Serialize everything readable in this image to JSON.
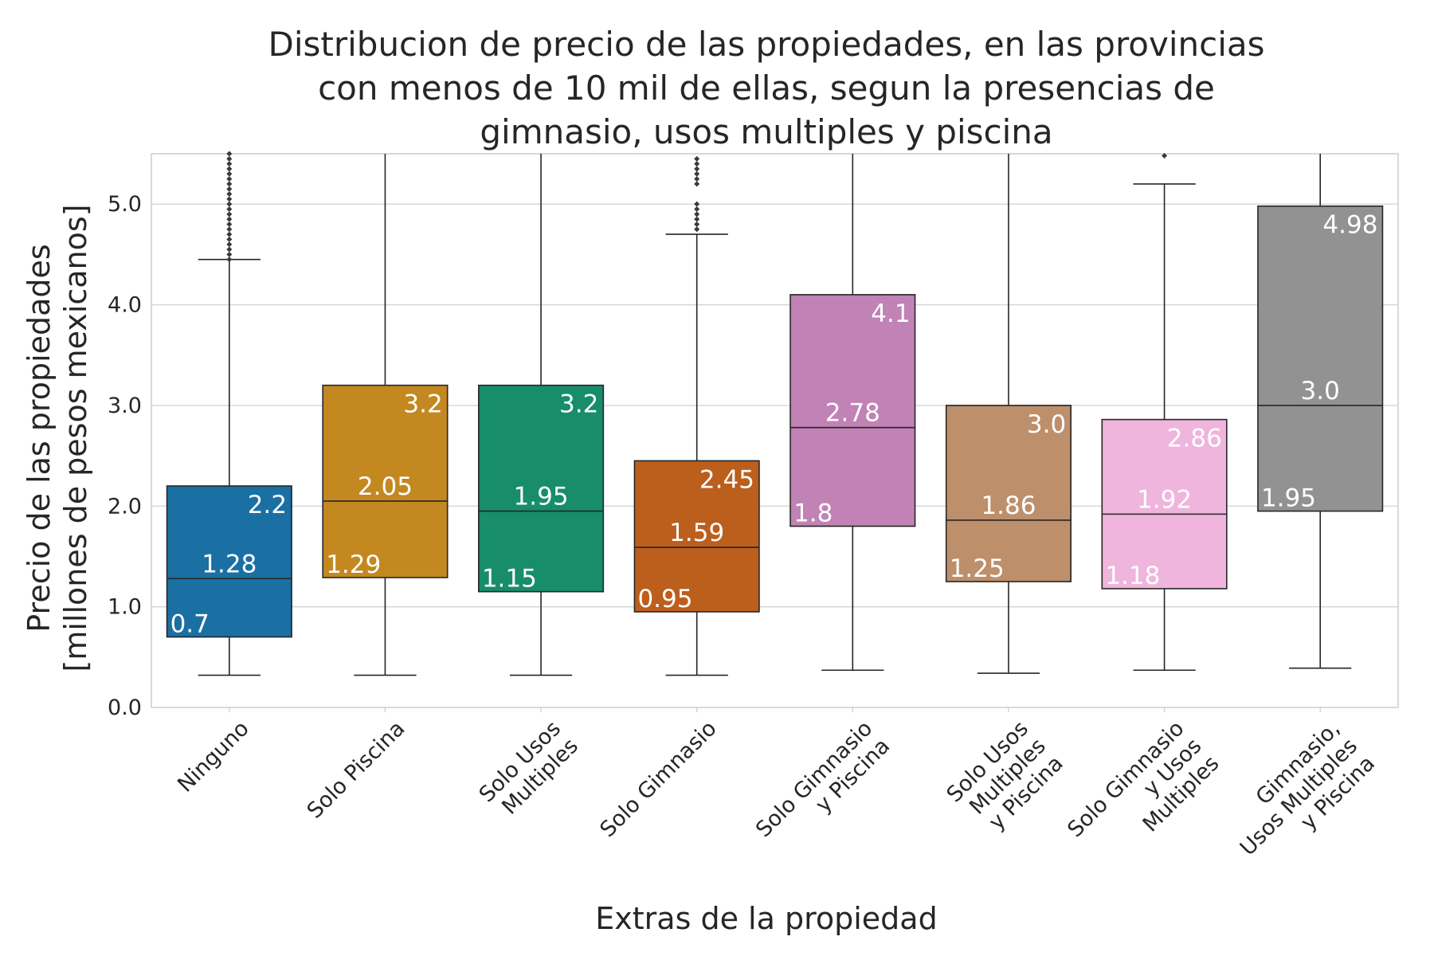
{
  "chart_data": {
    "type": "box",
    "title_lines": [
      "Distribucion de precio de las propiedades, en las provincias",
      "con menos de 10 mil de ellas, segun la presencias de",
      "gimnasio, usos multiples y piscina"
    ],
    "xlabel": "Extras de la propiedad",
    "ylabel_lines": [
      "Precio de las propiedades",
      "[millones de pesos mexicanos]"
    ],
    "ylim": [
      0,
      5.5
    ],
    "yticks": [
      "0.0",
      "1.0",
      "2.0",
      "3.0",
      "4.0",
      "5.0"
    ],
    "grid": true,
    "categories": [
      {
        "lines": [
          "Ninguno"
        ],
        "q1": 0.7,
        "median": 1.28,
        "q3": 2.2,
        "whisker_low": 0.32,
        "whisker_high": 4.45,
        "color": "#1a6fa3",
        "q1_label": "0.7",
        "median_label": "1.28",
        "q3_label": "2.2",
        "outliers": [
          4.45,
          4.5,
          4.55,
          4.6,
          4.65,
          4.7,
          4.75,
          4.8,
          4.85,
          4.9,
          4.95,
          5.0,
          5.05,
          5.1,
          5.15,
          5.2,
          5.25,
          5.3,
          5.35,
          5.4,
          5.45,
          5.5
        ]
      },
      {
        "lines": [
          "Solo Piscina"
        ],
        "q1": 1.29,
        "median": 2.05,
        "q3": 3.2,
        "whisker_low": 0.32,
        "whisker_high": 5.5,
        "color": "#c38820",
        "q1_label": "1.29",
        "median_label": "2.05",
        "q3_label": "3.2",
        "outliers": []
      },
      {
        "lines": [
          "Solo Usos",
          "Multiples"
        ],
        "q1": 1.15,
        "median": 1.95,
        "q3": 3.2,
        "whisker_low": 0.32,
        "whisker_high": 5.5,
        "color": "#178d6a",
        "q1_label": "1.15",
        "median_label": "1.95",
        "q3_label": "3.2",
        "outliers": []
      },
      {
        "lines": [
          "Solo Gimnasio"
        ],
        "q1": 0.95,
        "median": 1.59,
        "q3": 2.45,
        "whisker_low": 0.32,
        "whisker_high": 4.7,
        "color": "#bc5e1c",
        "q1_label": "0.95",
        "median_label": "1.59",
        "q3_label": "2.45",
        "outliers": [
          4.75,
          4.8,
          4.85,
          4.9,
          4.95,
          5.0,
          5.2,
          5.25,
          5.3,
          5.35,
          5.4,
          5.45
        ]
      },
      {
        "lines": [
          "Solo Gimnasio",
          "y Piscina"
        ],
        "q1": 1.8,
        "median": 2.78,
        "q3": 4.1,
        "whisker_low": 0.37,
        "whisker_high": 5.5,
        "color": "#c182b5",
        "q1_label": "1.8",
        "median_label": "2.78",
        "q3_label": "4.1",
        "outliers": []
      },
      {
        "lines": [
          "Solo Usos",
          "Multiples",
          "y Piscina"
        ],
        "q1": 1.25,
        "median": 1.86,
        "q3": 3.0,
        "whisker_low": 0.34,
        "whisker_high": 5.5,
        "color": "#bd8f6b",
        "q1_label": "1.25",
        "median_label": "1.86",
        "q3_label": "3.0",
        "outliers": []
      },
      {
        "lines": [
          "Solo Gimnasio",
          "y Usos",
          "Multiples"
        ],
        "q1": 1.18,
        "median": 1.92,
        "q3": 2.86,
        "whisker_low": 0.37,
        "whisker_high": 5.2,
        "color": "#f0b5dc",
        "q1_label": "1.18",
        "median_label": "1.92",
        "q3_label": "2.86",
        "outliers": [
          5.48
        ]
      },
      {
        "lines": [
          "Gimnasio,",
          "Usos Multiples",
          "y Piscina"
        ],
        "q1": 1.95,
        "median": 3.0,
        "q3": 4.98,
        "whisker_low": 0.39,
        "whisker_high": 5.5,
        "color": "#929292",
        "q1_label": "1.95",
        "median_label": "3.0",
        "q3_label": "4.98",
        "outliers": []
      }
    ]
  }
}
